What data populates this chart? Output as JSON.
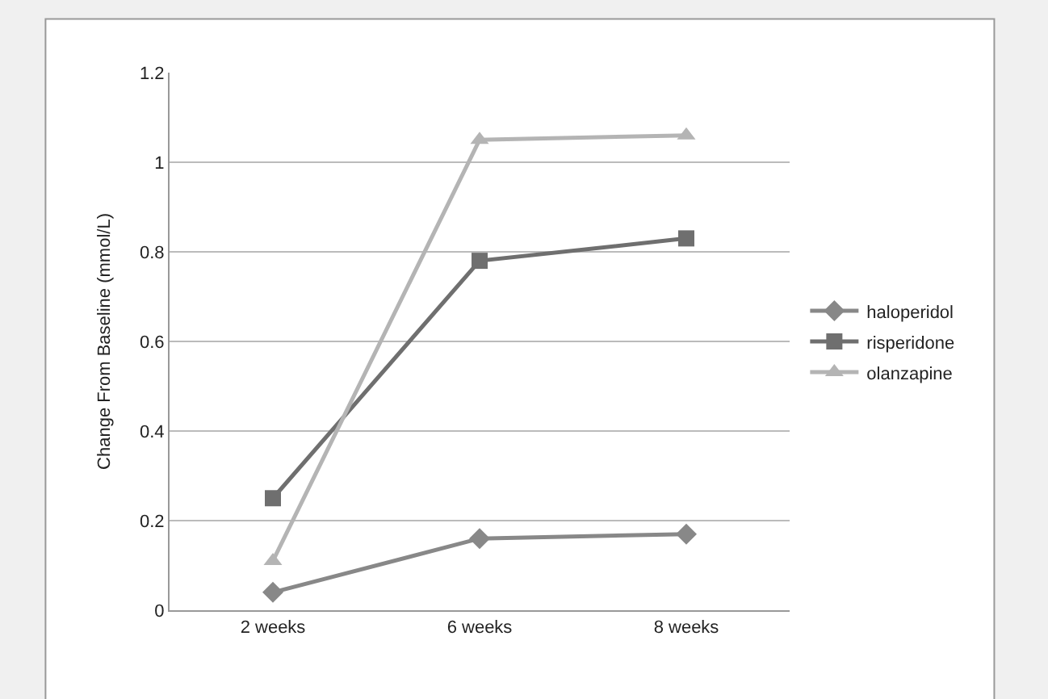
{
  "chart_data": {
    "type": "line",
    "ylabel": "Change From Baseline (mmol/L)",
    "categories": [
      "2 weeks",
      "6 weeks",
      "8 weeks"
    ],
    "series": [
      {
        "name": "haloperidol",
        "color": "#888888",
        "marker": "diamond",
        "values": [
          0.04,
          0.16,
          0.17
        ]
      },
      {
        "name": "risperidone",
        "color": "#6f6f6f",
        "marker": "square",
        "values": [
          0.25,
          0.78,
          0.83
        ]
      },
      {
        "name": "olanzapine",
        "color": "#b4b4b4",
        "marker": "triangle",
        "values": [
          0.11,
          1.05,
          1.06
        ]
      }
    ],
    "ylim": [
      0,
      1.2
    ],
    "yticks": [
      0,
      0.2,
      0.4,
      0.6,
      0.8,
      1,
      1.2
    ],
    "grid": "y",
    "legend": "right"
  }
}
